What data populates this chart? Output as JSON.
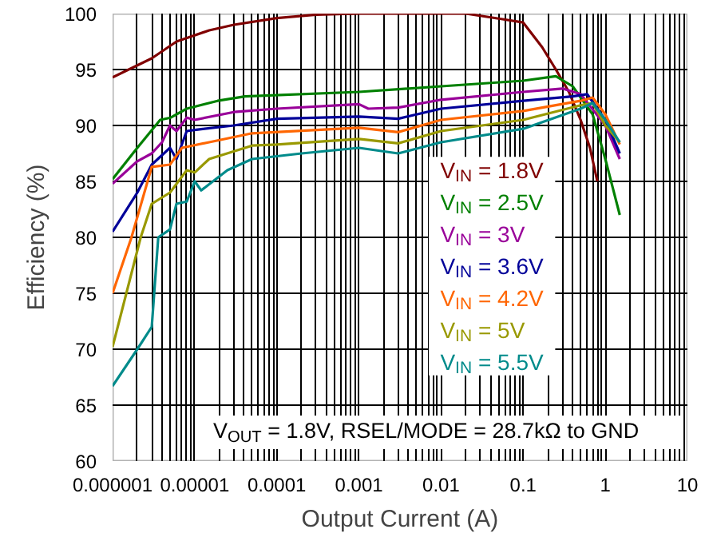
{
  "chart_data": {
    "type": "line",
    "xlabel": "Output Current (A)",
    "ylabel": "Efficiency (%)",
    "log": "x",
    "xlim": [
      1e-06,
      10
    ],
    "ylim": [
      60,
      100
    ],
    "xticks": [
      {
        "value": 1e-06,
        "label": "0.000001"
      },
      {
        "value": 1e-05,
        "label": "0.00001"
      },
      {
        "value": 0.0001,
        "label": "0.0001"
      },
      {
        "value": 0.001,
        "label": "0.001"
      },
      {
        "value": 0.01,
        "label": "0.01"
      },
      {
        "value": 0.1,
        "label": "0.1"
      },
      {
        "value": 1,
        "label": "1"
      },
      {
        "value": 10,
        "label": "10"
      }
    ],
    "yticks": [
      60,
      65,
      70,
      75,
      80,
      85,
      90,
      95,
      100
    ],
    "grid": true,
    "legend": "right",
    "annotations": [
      "V$_{OUT}$ = 1.8V, RSEL/MODE = 28.7kΩ to GND"
    ],
    "series": [
      {
        "name": "V$_{IN}$ = 1.8V",
        "color": "#800000",
        "x": [
          1e-06,
          3e-06,
          6e-06,
          1.5e-05,
          3e-05,
          0.0001,
          0.0003,
          0.001,
          0.02,
          0.056,
          0.1,
          0.17,
          0.25,
          0.36,
          0.5,
          0.65,
          0.8
        ],
        "values": [
          94.3,
          96,
          97.5,
          98.5,
          99,
          99.6,
          99.9,
          100,
          100,
          99.5,
          99.2,
          97,
          95,
          93,
          90.5,
          88,
          85
        ]
      },
      {
        "name": "V$_{IN}$ = 2.5V",
        "color": "#008000",
        "x": [
          1e-06,
          2e-06,
          3.8e-06,
          5.1e-06,
          8e-06,
          1.9e-05,
          4.1e-05,
          0.001,
          0.01,
          0.1,
          0.25,
          0.4,
          0.7,
          1,
          1.5
        ],
        "values": [
          85.2,
          88,
          90.5,
          90.7,
          91.5,
          92.2,
          92.6,
          93,
          93.5,
          94,
          94.4,
          93.5,
          91,
          87,
          82
        ]
      },
      {
        "name": "V$_{IN}$ = 3V",
        "color": "#990099",
        "x": [
          1e-06,
          2e-06,
          3e-06,
          4e-06,
          5e-06,
          6e-06,
          8e-06,
          1e-05,
          3e-05,
          0.0001,
          0.001,
          0.0013,
          0.003,
          0.01,
          0.1,
          0.3,
          0.5,
          1,
          1.5
        ],
        "values": [
          84.8,
          86.8,
          87.5,
          88.5,
          90,
          89.5,
          90.7,
          90.5,
          91.2,
          91.5,
          91.9,
          91.5,
          91.6,
          92.3,
          93,
          93.3,
          92.8,
          90,
          87
        ]
      },
      {
        "name": "V$_{IN}$ = 3.6V",
        "color": "#000099",
        "x": [
          1e-06,
          2e-06,
          3e-06,
          5e-06,
          6e-06,
          8e-06,
          1e-05,
          3e-05,
          0.0001,
          0.001,
          0.003,
          0.01,
          0.1,
          0.4,
          0.6,
          1,
          1.5
        ],
        "values": [
          80.5,
          84,
          86.5,
          88,
          87,
          89.5,
          89.6,
          90,
          90.6,
          90.8,
          90.6,
          91.5,
          92.2,
          92.6,
          92.8,
          90.5,
          87.5
        ]
      },
      {
        "name": "V$_{IN}$ = 4.2V",
        "color": "#ff6600",
        "x": [
          1e-06,
          1.7e-06,
          3e-06,
          5e-06,
          7e-06,
          1.5e-05,
          5e-05,
          0.001,
          0.003,
          0.01,
          0.1,
          0.5,
          0.7,
          1,
          1.5
        ],
        "values": [
          75,
          80,
          86.3,
          86.5,
          88,
          88.5,
          89.3,
          89.8,
          89.4,
          90.5,
          91.3,
          92.2,
          92.5,
          91,
          88.3
        ]
      },
      {
        "name": "V$_{IN}$ = 5V",
        "color": "#999900",
        "x": [
          1e-06,
          2.2e-06,
          3e-06,
          5e-06,
          8e-06,
          1e-05,
          1.5e-05,
          5e-05,
          0.0001,
          0.001,
          0.003,
          0.01,
          0.1,
          0.5,
          0.7,
          1,
          1.5
        ],
        "values": [
          70.2,
          80,
          83,
          84,
          86,
          85.8,
          87,
          88.2,
          88.3,
          88.8,
          88.4,
          89.5,
          90.5,
          91.8,
          92,
          90,
          88.5
        ]
      },
      {
        "name": "V$_{IN}$ = 5.5V",
        "color": "#008b8b",
        "x": [
          1e-06,
          2e-06,
          3e-06,
          3.6e-06,
          5e-06,
          6e-06,
          8e-06,
          1e-05,
          1.2e-05,
          2.5e-05,
          5e-05,
          0.0002,
          0.001,
          0.003,
          0.01,
          0.1,
          0.5,
          0.7,
          1,
          1.5
        ],
        "values": [
          66.7,
          70,
          72,
          80,
          80.7,
          83,
          83.2,
          85,
          84.2,
          86,
          87,
          87.5,
          88,
          87.5,
          88.5,
          89.7,
          91.5,
          92,
          90.5,
          88.5
        ]
      }
    ]
  }
}
